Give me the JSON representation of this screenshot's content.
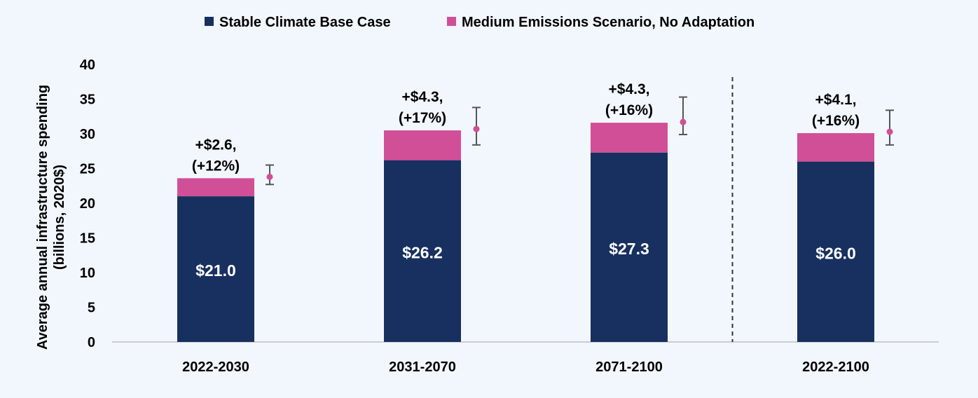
{
  "chart_data": {
    "type": "bar",
    "stacked": true,
    "categories": [
      "2022-2030",
      "2031-2070",
      "2071-2100",
      "2022-2100"
    ],
    "series": [
      {
        "name": "Stable Climate Base Case",
        "color": "#17305f",
        "values": [
          21.0,
          26.2,
          27.3,
          26.0
        ]
      },
      {
        "name": "Medium Emissions Scenario, No Adaptation",
        "color": "#d14f97",
        "values": [
          2.6,
          4.3,
          4.3,
          4.1
        ]
      }
    ],
    "base_labels": [
      "$21.0",
      "$26.2",
      "$27.3",
      "$26.0"
    ],
    "increase_labels": [
      [
        "+$2.6,",
        "(+12%)"
      ],
      [
        "+$4.3,",
        "(+17%)"
      ],
      [
        "+$4.3,",
        "(+16%)"
      ],
      [
        "+$4.1,",
        "(+16%)"
      ]
    ],
    "error_bars": [
      {
        "point": 23.8,
        "low": 22.7,
        "high": 25.5
      },
      {
        "point": 30.7,
        "low": 28.4,
        "high": 33.8
      },
      {
        "point": 31.7,
        "low": 29.9,
        "high": 35.3
      },
      {
        "point": 30.3,
        "low": 28.4,
        "high": 33.4
      }
    ],
    "ylabel": [
      "Average annual infrastructure spending",
      "(billions, 2020$)"
    ],
    "ylim": [
      0,
      40
    ],
    "yticks": [
      0,
      5,
      10,
      15,
      20,
      25,
      30,
      35,
      40
    ],
    "divider_before_category": 3,
    "legend_position": "top-center",
    "grid": false,
    "colors": {
      "background": "#f2f7fd",
      "text": "#000000",
      "axis": "#bfbfbf",
      "error_bar": "#555555"
    }
  }
}
